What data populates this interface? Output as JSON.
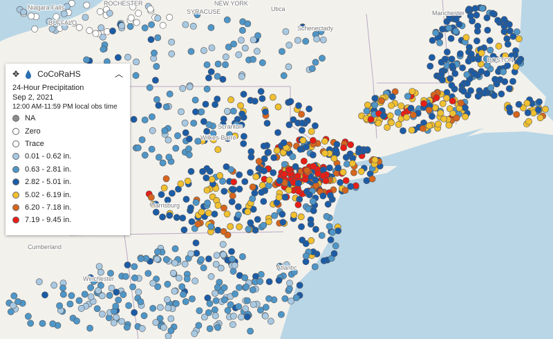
{
  "legend": {
    "title": "CoCoRaHS",
    "heading": "24-Hour Precipitation",
    "date": "Sep 2, 2021",
    "time": "12:00 AM-11:59 PM local obs time",
    "items": [
      {
        "label": "NA",
        "color": "#8c8c8c"
      },
      {
        "label": "Zero",
        "color": "#ffffff"
      },
      {
        "label": "Trace",
        "color": "#ffffff"
      },
      {
        "label": "0.01 - 0.62 in.",
        "color": "#a9c9e2"
      },
      {
        "label": "0.63 - 2.81 in.",
        "color": "#4f96c8"
      },
      {
        "label": "2.82 - 5.01 in.",
        "color": "#1c5ca6"
      },
      {
        "label": "5.02 - 6.19 in.",
        "color": "#f0c030"
      },
      {
        "label": "6.20 - 7.18 in.",
        "color": "#d6661e"
      },
      {
        "label": "7.19 - 9.45 in.",
        "color": "#e81e16"
      }
    ]
  },
  "map_labels": [
    "Niagara Falls",
    "BUFFALO",
    "ROCHESTER",
    "SYRACUSE",
    "NEW YORK",
    "Utica",
    "Schenectady",
    "Manchester",
    "BOSTON",
    "Scranton",
    "Wilkes-Barre",
    "Harrisburg",
    "Cumberland",
    "Winchester",
    "Atlantic"
  ]
}
